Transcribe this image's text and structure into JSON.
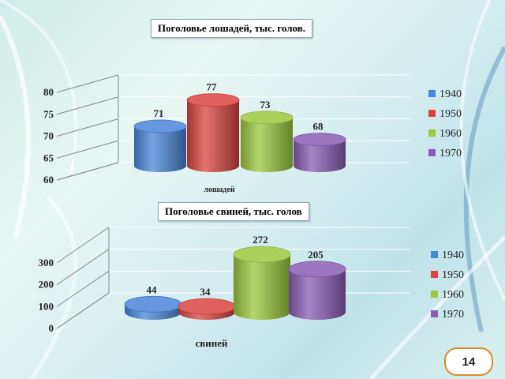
{
  "page_number": "14",
  "colors": {
    "1940": "#4a86d8",
    "1950": "#d9443f",
    "1960": "#9cc83e",
    "1970": "#8a5cb4"
  },
  "chart_data": [
    {
      "type": "bar",
      "title": "Поголовье лошадей, тыс. голов.",
      "xlabel": "лошадей",
      "category": "лошадей",
      "ylim": [
        60,
        80
      ],
      "yticks": [
        "60",
        "65",
        "70",
        "75",
        "80"
      ],
      "grid": true,
      "legend_position": "right",
      "series": [
        {
          "name": "1940",
          "values": [
            71
          ]
        },
        {
          "name": "1950",
          "values": [
            77
          ]
        },
        {
          "name": "1960",
          "values": [
            73
          ]
        },
        {
          "name": "1970",
          "values": [
            68
          ]
        }
      ]
    },
    {
      "type": "bar",
      "title": "Поголовье свиней, тыс. голов",
      "xlabel": "свиней",
      "category": "свиней",
      "ylim": [
        0,
        300
      ],
      "yticks": [
        "0",
        "100",
        "200",
        "300"
      ],
      "grid": true,
      "legend_position": "right",
      "series": [
        {
          "name": "1940",
          "values": [
            44
          ]
        },
        {
          "name": "1950",
          "values": [
            34
          ]
        },
        {
          "name": "1960",
          "values": [
            272
          ]
        },
        {
          "name": "1970",
          "values": [
            205
          ]
        }
      ]
    }
  ]
}
